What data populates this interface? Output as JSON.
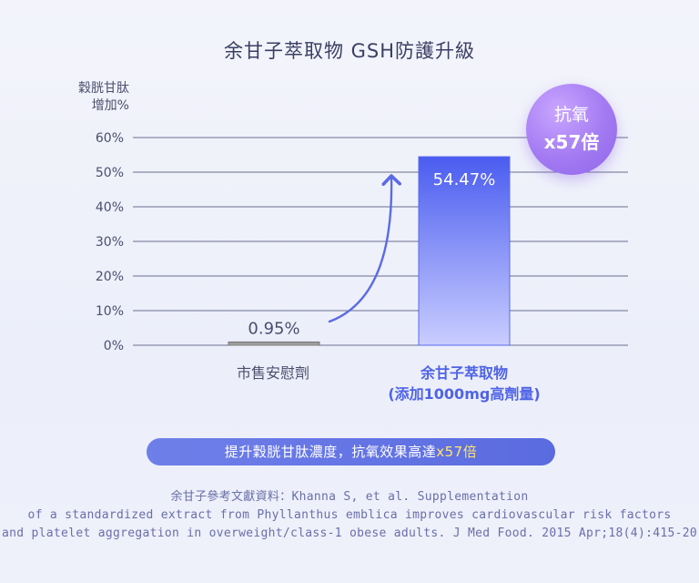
{
  "title": "余甘子萃取物 GSH防護升級",
  "y_axis_label_line1": "穀胱甘肽",
  "y_axis_label_line2": "增加%",
  "badge": {
    "line1": "抗氧",
    "line2": "x57倍"
  },
  "category_labels": {
    "cat1": "市售安慰劑",
    "cat2_line1": "余甘子萃取物",
    "cat2_line2": "(添加1000mg高劑量)"
  },
  "highlight_text": {
    "prefix": "提升穀胱甘肽濃度，抗氧效果高達",
    "emphasis": "x57倍"
  },
  "references": {
    "line1": "余甘子參考文獻資料：Khanna S, et al. Supplementation",
    "line2": "of a standardized extract from Phyllanthus emblica improves cardiovascular risk factors",
    "line3": "and platelet aggregation in overweight/class-1 obese adults. J Med Food. 2015 Apr;18(4):415-20"
  },
  "colors": {
    "placebo_bar": "#8c8c8c",
    "extract_bar_top": "#4a5cf0",
    "extract_bar_bottom": "#c6cbff",
    "arrow": "#5b6ae6",
    "gridline": "#6a6e8e"
  },
  "chart_data": {
    "type": "bar",
    "categories": [
      "市售安慰劑",
      "余甘子萃取物(添加1000mg高劑量)"
    ],
    "values": [
      0.95,
      54.47
    ],
    "data_labels": [
      "0.95%",
      "54.47%"
    ],
    "yticks": [
      "0%",
      "10%",
      "20%",
      "30%",
      "40%",
      "50%",
      "60%"
    ],
    "ylim": [
      0,
      60
    ],
    "grid": true
  }
}
